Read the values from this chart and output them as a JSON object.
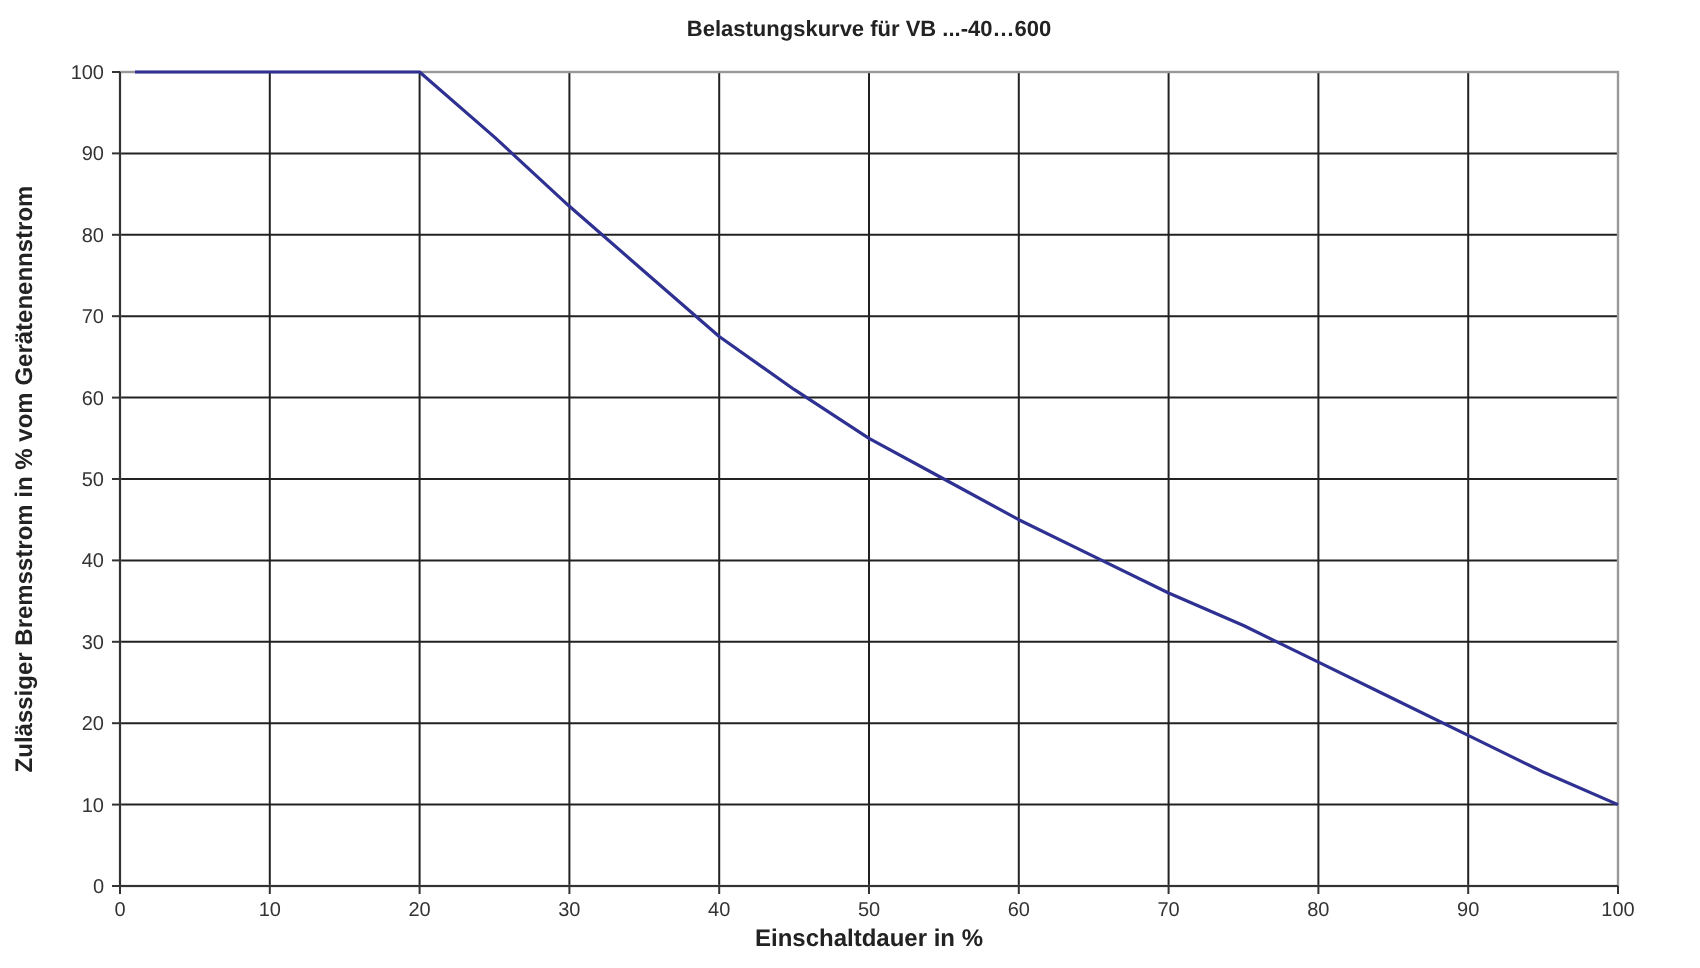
{
  "chart_data": {
    "type": "line",
    "title": "Belastungskurve für VB ...-40…600",
    "xlabel": "Einschaltdauer in %",
    "ylabel": "Zulässiger Bremsstrom in % vom Gerätenennstrom",
    "series": [
      {
        "color": "#2e3192",
        "x": [
          1,
          20,
          25,
          30,
          35,
          40,
          45,
          50,
          55,
          60,
          65,
          70,
          75,
          80,
          85,
          90,
          95,
          100
        ],
        "values": [
          100,
          100,
          92,
          83.5,
          75.5,
          67.5,
          61,
          55,
          50,
          45,
          40.5,
          36,
          32,
          27.5,
          23,
          18.5,
          14,
          10
        ]
      }
    ],
    "xlim": [
      0,
      100
    ],
    "xticks": [
      0,
      10,
      20,
      30,
      40,
      50,
      60,
      70,
      80,
      90,
      100
    ],
    "ylim": [
      0,
      100
    ],
    "yticks": [
      0,
      10,
      20,
      30,
      40,
      50,
      60,
      70,
      80,
      90,
      100
    ],
    "grid": true,
    "marker": "none",
    "line_style": "solid"
  }
}
